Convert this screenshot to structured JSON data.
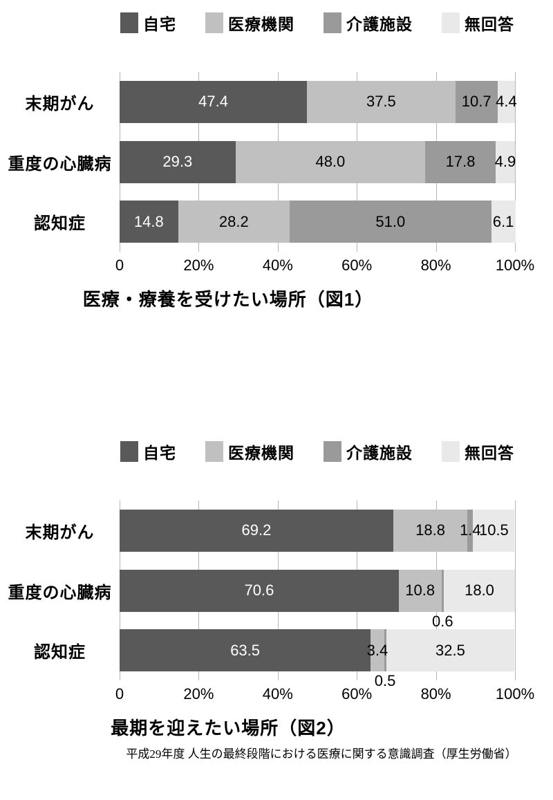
{
  "page": {
    "background": "#ffffff",
    "grid_color": "#b5b5b5"
  },
  "source_note": "平成29年度 人生の最終段階における医療に関する意識調査（厚生労働省）",
  "chart_data": [
    {
      "type": "bar",
      "variant": "stacked-horizontal",
      "title": "医療・療養を受けたい場所（図1）",
      "categories": [
        "末期がん",
        "重度の心臓病",
        "認知症"
      ],
      "series": [
        {
          "name": "自宅",
          "color": "#595959",
          "label_color": "#ffffff",
          "values": [
            47.4,
            29.3,
            14.8
          ]
        },
        {
          "name": "医療機関",
          "color": "#c0c0c0",
          "label_color": "#000000",
          "values": [
            37.5,
            48.0,
            28.2
          ]
        },
        {
          "name": "介護施設",
          "color": "#9a9a9a",
          "label_color": "#000000",
          "values": [
            10.7,
            17.8,
            51.0
          ]
        },
        {
          "name": "無回答",
          "color": "#e9e9e9",
          "label_color": "#000000",
          "values": [
            4.4,
            4.9,
            6.1
          ]
        }
      ],
      "x_ticks": [
        "0",
        "20%",
        "40%",
        "60%",
        "80%",
        "100%"
      ],
      "xlim": [
        0,
        100
      ],
      "grid": true,
      "legend_position": "top"
    },
    {
      "type": "bar",
      "variant": "stacked-horizontal",
      "title": "最期を迎えたい場所（図2）",
      "categories": [
        "末期がん",
        "重度の心臓病",
        "認知症"
      ],
      "series": [
        {
          "name": "自宅",
          "color": "#595959",
          "label_color": "#ffffff",
          "values": [
            69.2,
            70.6,
            63.5
          ]
        },
        {
          "name": "医療機関",
          "color": "#c0c0c0",
          "label_color": "#000000",
          "values": [
            18.8,
            10.8,
            3.4
          ]
        },
        {
          "name": "介護施設",
          "color": "#9a9a9a",
          "label_color": "#000000",
          "values": [
            1.4,
            0.6,
            0.5
          ]
        },
        {
          "name": "無回答",
          "color": "#e9e9e9",
          "label_color": "#000000",
          "values": [
            10.5,
            18.0,
            32.5
          ]
        }
      ],
      "x_ticks": [
        "0",
        "20%",
        "40%",
        "60%",
        "80%",
        "100%"
      ],
      "xlim": [
        0,
        100
      ],
      "grid": true,
      "legend_position": "top"
    }
  ]
}
